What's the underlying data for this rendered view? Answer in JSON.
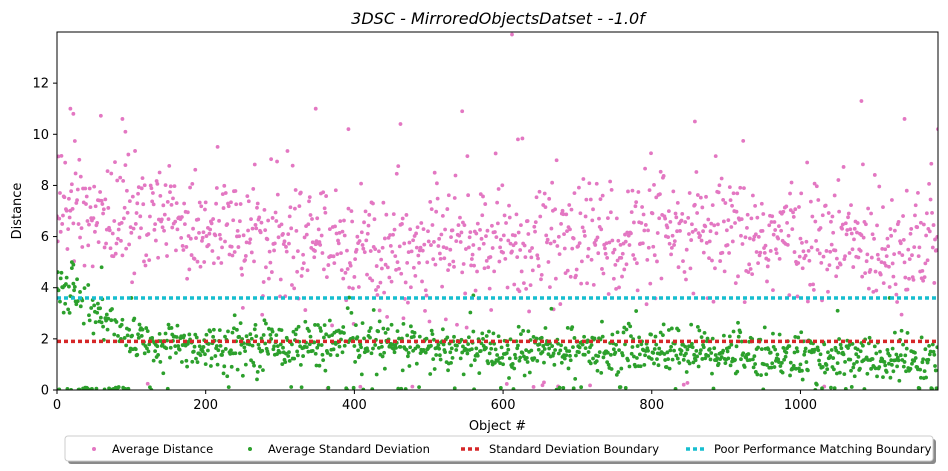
{
  "chart_data": {
    "type": "scatter",
    "title": "3DSC - MirroredObjectsDatset - -1.0f",
    "xlabel": "Object #",
    "ylabel": "Distance",
    "xlim": [
      0,
      1185
    ],
    "ylim": [
      0,
      14
    ],
    "xticks": [
      0,
      200,
      400,
      600,
      800,
      1000
    ],
    "yticks": [
      0,
      2,
      4,
      6,
      8,
      10,
      12
    ],
    "grid": false,
    "legend_position": "bottom-center",
    "legend_columns": 4,
    "series": [
      {
        "name": "Average Distance",
        "kind": "scatter",
        "color": "#e377c2",
        "n_points": 1185,
        "trend_y": [
          [
            0,
            7.2
          ],
          [
            100,
            6.8
          ],
          [
            200,
            6.4
          ],
          [
            300,
            6.0
          ],
          [
            400,
            5.7
          ],
          [
            500,
            5.6
          ],
          [
            600,
            5.7
          ],
          [
            700,
            5.9
          ],
          [
            800,
            6.0
          ],
          [
            900,
            6.0
          ],
          [
            1000,
            5.9
          ],
          [
            1100,
            5.8
          ],
          [
            1185,
            5.7
          ]
        ],
        "spread": 1.2,
        "outliers": [
          [
            18,
            11.0
          ],
          [
            22,
            10.8
          ],
          [
            88,
            10.6
          ],
          [
            92,
            10.1
          ],
          [
            348,
            11.0
          ],
          [
            392,
            10.2
          ],
          [
            462,
            10.4
          ],
          [
            545,
            10.9
          ],
          [
            612,
            13.9
          ],
          [
            620,
            9.8
          ],
          [
            858,
            10.5
          ],
          [
            1082,
            11.3
          ],
          [
            1140,
            10.6
          ],
          [
            1185,
            10.2
          ]
        ]
      },
      {
        "name": "Average Standard Deviation",
        "kind": "scatter",
        "color": "#2ca02c",
        "n_points": 1185,
        "trend_y": [
          [
            0,
            4.2
          ],
          [
            40,
            3.2
          ],
          [
            100,
            2.0
          ],
          [
            200,
            1.7
          ],
          [
            300,
            1.8
          ],
          [
            400,
            1.9
          ],
          [
            500,
            1.6
          ],
          [
            600,
            1.5
          ],
          [
            700,
            1.6
          ],
          [
            800,
            1.6
          ],
          [
            900,
            1.5
          ],
          [
            1000,
            1.3
          ],
          [
            1100,
            1.2
          ],
          [
            1185,
            1.1
          ]
        ],
        "spread": 0.45,
        "outliers": [
          [
            20,
            5.0
          ],
          [
            22,
            4.9
          ],
          [
            60,
            4.8
          ],
          [
            100,
            3.6
          ],
          [
            560,
            3.7
          ],
          [
            1050,
            3.1
          ],
          [
            1120,
            3.6
          ]
        ]
      },
      {
        "name": "Standard Deviation Boundary",
        "kind": "hline",
        "color": "#d62728",
        "y": 1.9
      },
      {
        "name": "Poor Performance Matching Boundary",
        "kind": "hline",
        "color": "#17becf",
        "y": 3.6
      }
    ]
  }
}
